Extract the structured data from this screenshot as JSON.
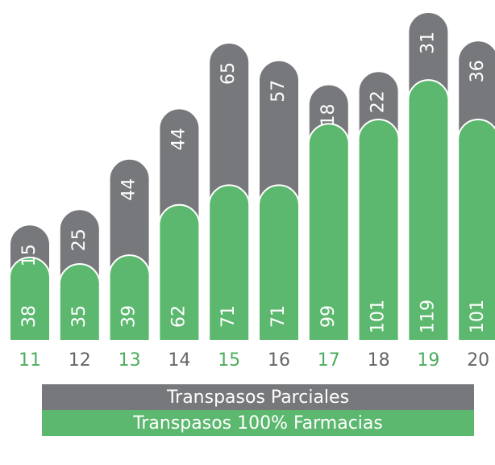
{
  "chart_data": {
    "type": "bar",
    "stacked": true,
    "categories": [
      "11",
      "12",
      "13",
      "14",
      "15",
      "16",
      "17",
      "18",
      "19",
      "20"
    ],
    "category_colors": [
      "#4cae5e",
      "#666666",
      "#4cae5e",
      "#666666",
      "#4cae5e",
      "#666666",
      "#4cae5e",
      "#666666",
      "#4cae5e",
      "#666666"
    ],
    "series": [
      {
        "name": "Transpasos 100% Farmacias",
        "color": "#5db86f",
        "values": [
          38,
          35,
          39,
          62,
          71,
          71,
          99,
          101,
          119,
          101
        ]
      },
      {
        "name": "Transpasos Parciales",
        "color": "#77787b",
        "values": [
          15,
          25,
          44,
          44,
          65,
          57,
          18,
          22,
          31,
          36
        ]
      }
    ]
  }
}
